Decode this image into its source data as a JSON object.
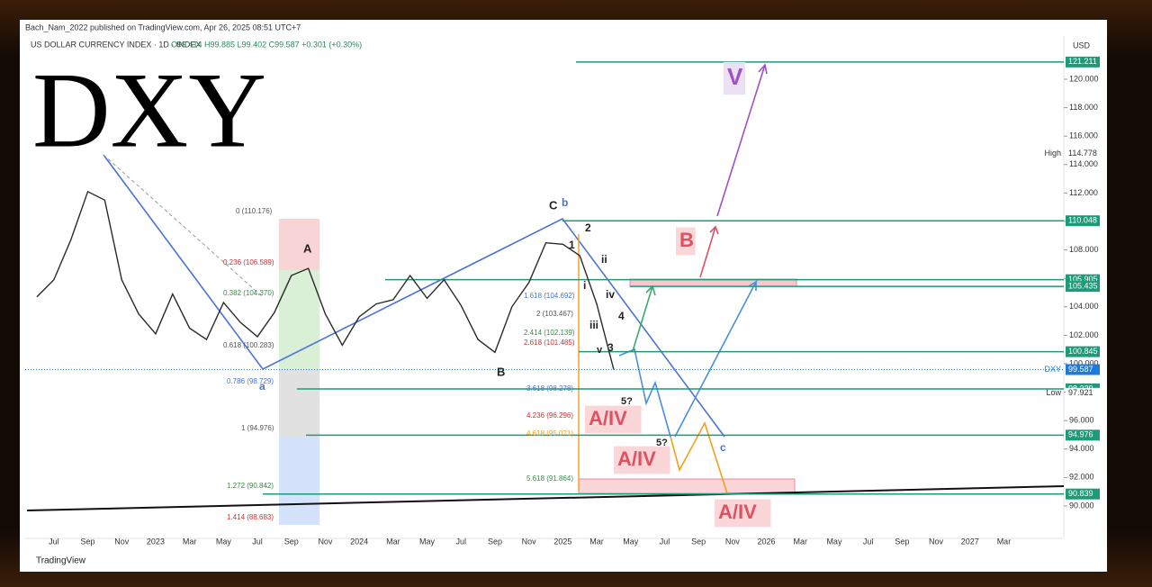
{
  "header": {
    "publisher": "Bach_Nam_2022 published on TradingView.com, Apr 26, 2025 08:51 UTC+7",
    "symbol": "US DOLLAR CURRENCY INDEX · 1D · INDEX",
    "ohlc": "O99.414 H99.885 L99.402 C99.587 +0.301 (+0.30%)",
    "big_title": "DXY",
    "currency": "USD",
    "footer": "TradingView"
  },
  "chart_data": {
    "type": "line",
    "color": "#2a2a2a",
    "categories": [
      null,
      "Jul",
      null,
      "Sep",
      null,
      "Nov",
      null,
      "2023",
      null,
      "Mar",
      null,
      "May",
      null,
      "Jul",
      null,
      "Sep",
      null,
      "Nov",
      null,
      "2024",
      null,
      "Mar",
      null,
      "May",
      null,
      "Jul",
      null,
      "Sep",
      null,
      "Nov",
      null,
      "2025",
      null,
      "Mar",
      null,
      "May",
      null,
      "Jul",
      null,
      "Sep",
      null,
      "Nov",
      null,
      "2026",
      null,
      "Mar",
      null,
      "May",
      null,
      "Jul",
      null,
      "Sep",
      null,
      "Nov",
      null,
      "2027",
      null,
      "Mar"
    ],
    "values": [
      104.7,
      105.9,
      108.7,
      112.1,
      111.5,
      105.9,
      103.5,
      102.1,
      104.9,
      102.5,
      101.7,
      104.3,
      102.9,
      101.9,
      103.6,
      106.2,
      106.7,
      103.5,
      101.3,
      103.3,
      104.2,
      104.5,
      106.2,
      104.6,
      105.9,
      104.1,
      101.7,
      100.8,
      104.0,
      105.7,
      108.5,
      108.4,
      107.6,
      104.2,
      99.6,
      null,
      null,
      null,
      null,
      null,
      null,
      null,
      null,
      null,
      null,
      null,
      null,
      null,
      null,
      null,
      null,
      null,
      null,
      null,
      null,
      null,
      null,
      null
    ],
    "ylim": [
      87.7,
      123.0
    ],
    "yticks": [
      {
        "value": 90,
        "label": "90.000"
      },
      {
        "value": 92,
        "label": "92.000"
      },
      {
        "value": 94,
        "label": "94.000"
      },
      {
        "value": 96,
        "label": "96.000"
      },
      {
        "value": 98,
        "label": "98.000"
      },
      {
        "value": 100,
        "label": "100.000"
      },
      {
        "value": 102,
        "label": "102.000"
      },
      {
        "value": 104,
        "label": "104.000"
      },
      {
        "value": 106,
        "label": "106.000"
      },
      {
        "value": 108,
        "label": "108.000"
      },
      {
        "value": 110,
        "label": "110.000"
      },
      {
        "value": 112,
        "label": "112.000"
      },
      {
        "value": 114,
        "label": "114.000"
      },
      {
        "value": 116,
        "label": "116.000"
      },
      {
        "value": 118,
        "label": "118.000"
      },
      {
        "value": 120,
        "label": "120.000"
      }
    ],
    "levels": [
      121.211,
      110.048,
      105.905,
      105.435,
      100.845,
      98.229,
      94.976,
      90.839
    ],
    "level_color": "#1e9a78",
    "last": {
      "name": "DXY",
      "value": 99.587
    },
    "high": {
      "name": "High",
      "value": 114.778
    },
    "low": {
      "name": "Low",
      "value": 97.921
    },
    "annotations": [
      "0 (110.176)",
      "0.236 (106.589)",
      "0.382 (104.370)",
      "0.618 (100.283)",
      "0.786 (98.729)",
      "1 (94.976)",
      "1.272 (90.842)",
      "1.414 (88.683)",
      "1.618 (104.692)",
      "2 (103.467)",
      "2.414 (102.139)",
      "2.618 (101.485)",
      "3.618 (98.278)",
      "4.236 (96.296)",
      "4.618 (95.071)",
      "5.618 (91.864)",
      "A",
      "B",
      "C",
      "b",
      "a",
      "1",
      "2",
      "i",
      "ii",
      "iii",
      "iv",
      "v",
      "3",
      "4",
      "5?",
      "5?",
      "c",
      "V",
      "B",
      "A/IV",
      "A/IV",
      "A/IV"
    ]
  }
}
